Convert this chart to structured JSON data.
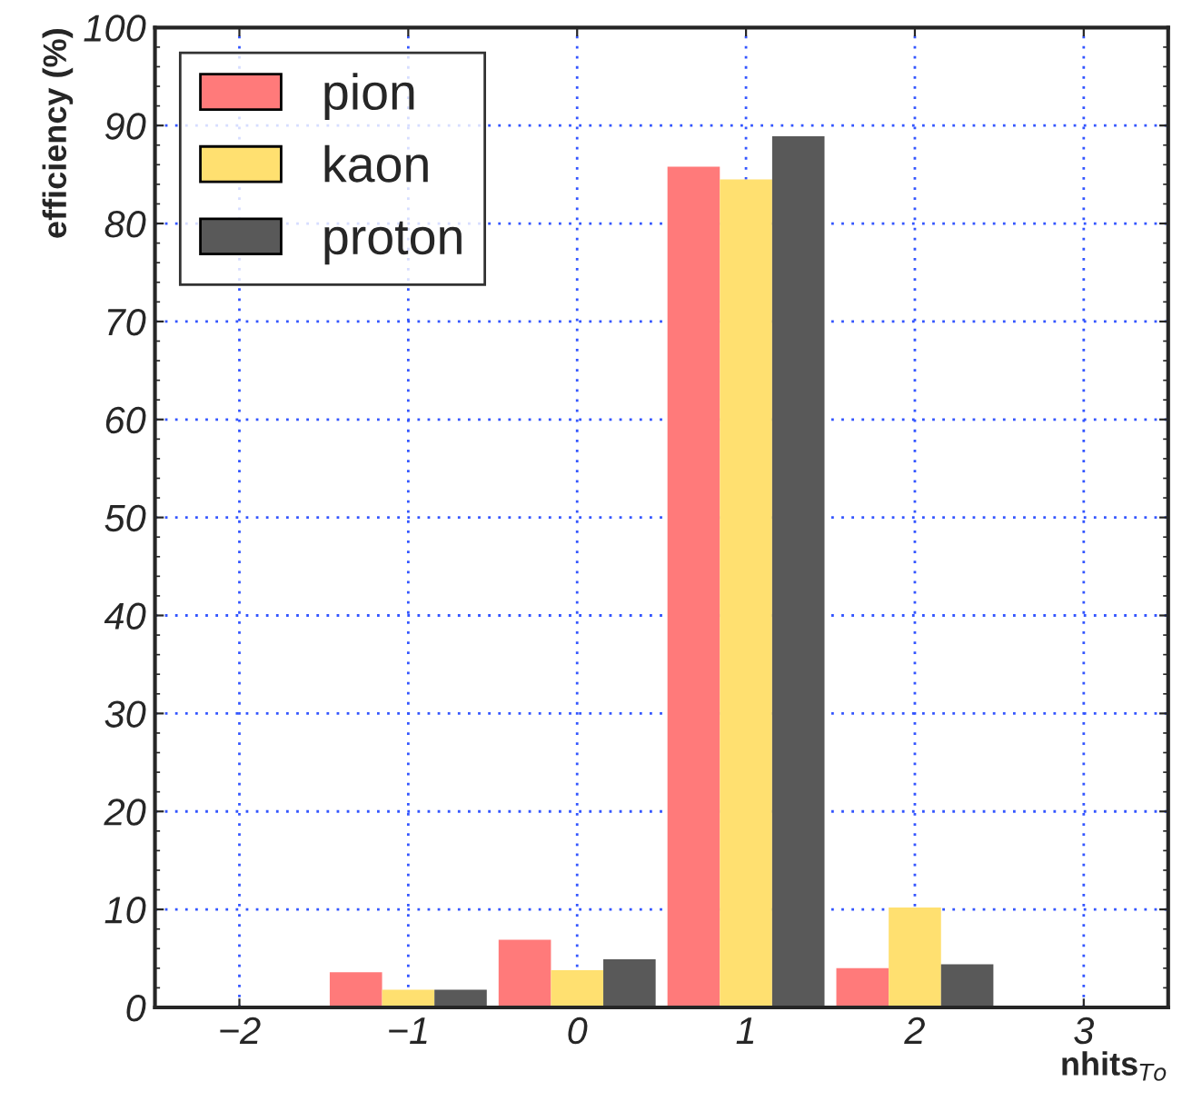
{
  "chart_data": {
    "type": "bar",
    "xlabel": "nhits$_{To}$",
    "ylabel": "efficiency (%)",
    "categories": [
      "−2",
      "−1",
      "0",
      "1",
      "2",
      "3"
    ],
    "series": [
      {
        "name": "pion",
        "color": "#ff7a7a",
        "values": [
          0,
          3.6,
          6.9,
          85.8,
          4.0,
          0
        ]
      },
      {
        "name": "kaon",
        "color": "#ffe070",
        "values": [
          0,
          1.8,
          3.8,
          84.5,
          10.2,
          0
        ]
      },
      {
        "name": "proton",
        "color": "#595959",
        "values": [
          0,
          1.8,
          4.9,
          88.9,
          4.4,
          0
        ]
      }
    ],
    "ylim": [
      0,
      100
    ],
    "yticks": [
      0,
      10,
      20,
      30,
      40,
      50,
      60,
      70,
      80,
      90,
      100
    ],
    "grid": true,
    "legend": "top left"
  }
}
